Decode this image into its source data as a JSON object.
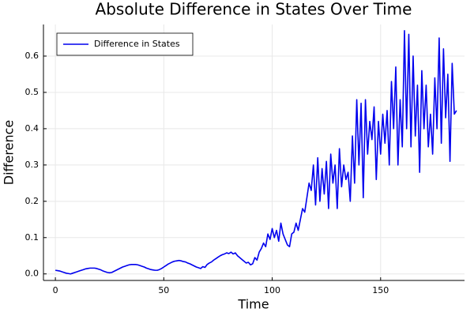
{
  "chart_data": {
    "type": "line",
    "title": "Absolute Difference in States Over Time",
    "xlabel": "Time",
    "ylabel": "Difference",
    "x": [
      0,
      1,
      2,
      3,
      4,
      5,
      6,
      7,
      8,
      9,
      10,
      11,
      12,
      13,
      14,
      15,
      16,
      17,
      18,
      19,
      20,
      21,
      22,
      23,
      24,
      25,
      26,
      27,
      28,
      29,
      30,
      31,
      32,
      33,
      34,
      35,
      36,
      37,
      38,
      39,
      40,
      41,
      42,
      43,
      44,
      45,
      46,
      47,
      48,
      49,
      50,
      51,
      52,
      53,
      54,
      55,
      56,
      57,
      58,
      59,
      60,
      61,
      62,
      63,
      64,
      65,
      66,
      67,
      68,
      69,
      70,
      71,
      72,
      73,
      74,
      75,
      76,
      77,
      78,
      79,
      80,
      81,
      82,
      83,
      84,
      85,
      86,
      87,
      88,
      89,
      90,
      91,
      92,
      93,
      94,
      95,
      96,
      97,
      98,
      99,
      100,
      101,
      102,
      103,
      104,
      105,
      106,
      107,
      108,
      109,
      110,
      111,
      112,
      113,
      114,
      115,
      116,
      117,
      118,
      119,
      120,
      121,
      122,
      123,
      124,
      125,
      126,
      127,
      128,
      129,
      130,
      131,
      132,
      133,
      134,
      135,
      136,
      137,
      138,
      139,
      140,
      141,
      142,
      143,
      144,
      145,
      146,
      147,
      148,
      149,
      150,
      151,
      152,
      153,
      154,
      155,
      156,
      157,
      158,
      159,
      160,
      161,
      162,
      163,
      164,
      165,
      166,
      167,
      168,
      169,
      170,
      171,
      172,
      173,
      174,
      175,
      176,
      177,
      178,
      179,
      180,
      181,
      182,
      183,
      184,
      185
    ],
    "series": [
      {
        "name": "Difference in States",
        "color": "#0000ee",
        "values": [
          0.01,
          0.009,
          0.008,
          0.006,
          0.004,
          0.002,
          0.001,
          0.0,
          0.002,
          0.004,
          0.006,
          0.008,
          0.01,
          0.012,
          0.014,
          0.015,
          0.016,
          0.016,
          0.016,
          0.015,
          0.013,
          0.011,
          0.008,
          0.006,
          0.004,
          0.003,
          0.004,
          0.007,
          0.01,
          0.013,
          0.016,
          0.019,
          0.021,
          0.023,
          0.025,
          0.026,
          0.026,
          0.026,
          0.025,
          0.023,
          0.021,
          0.019,
          0.016,
          0.014,
          0.012,
          0.011,
          0.01,
          0.01,
          0.012,
          0.015,
          0.019,
          0.023,
          0.027,
          0.03,
          0.033,
          0.035,
          0.036,
          0.037,
          0.036,
          0.034,
          0.033,
          0.03,
          0.028,
          0.025,
          0.022,
          0.019,
          0.017,
          0.015,
          0.02,
          0.018,
          0.026,
          0.03,
          0.033,
          0.038,
          0.042,
          0.046,
          0.05,
          0.053,
          0.055,
          0.058,
          0.056,
          0.06,
          0.055,
          0.058,
          0.05,
          0.045,
          0.04,
          0.035,
          0.03,
          0.032,
          0.025,
          0.028,
          0.045,
          0.038,
          0.06,
          0.07,
          0.085,
          0.075,
          0.11,
          0.095,
          0.125,
          0.1,
          0.12,
          0.09,
          0.14,
          0.11,
          0.095,
          0.08,
          0.075,
          0.11,
          0.115,
          0.14,
          0.12,
          0.15,
          0.18,
          0.17,
          0.21,
          0.25,
          0.23,
          0.3,
          0.19,
          0.32,
          0.2,
          0.29,
          0.22,
          0.31,
          0.18,
          0.33,
          0.25,
          0.3,
          0.18,
          0.345,
          0.24,
          0.3,
          0.26,
          0.28,
          0.2,
          0.38,
          0.25,
          0.48,
          0.3,
          0.47,
          0.21,
          0.48,
          0.33,
          0.42,
          0.37,
          0.46,
          0.26,
          0.42,
          0.33,
          0.44,
          0.36,
          0.45,
          0.3,
          0.53,
          0.4,
          0.57,
          0.3,
          0.48,
          0.35,
          0.67,
          0.4,
          0.66,
          0.35,
          0.6,
          0.38,
          0.52,
          0.28,
          0.56,
          0.4,
          0.52,
          0.35,
          0.44,
          0.33,
          0.54,
          0.4,
          0.65,
          0.36,
          0.62,
          0.43,
          0.55,
          0.31,
          0.58,
          0.44,
          0.45
        ]
      }
    ],
    "xlim": [
      -5.5,
      188.7
    ],
    "xticks": [
      0,
      50,
      100,
      150
    ],
    "ylim": [
      -0.018,
      0.687
    ],
    "yticks": [
      {
        "value": 0,
        "label": "0.0"
      },
      0.1,
      0.2,
      0.3,
      0.4,
      0.5,
      0.6
    ],
    "grid": true,
    "legend": "top-left"
  }
}
